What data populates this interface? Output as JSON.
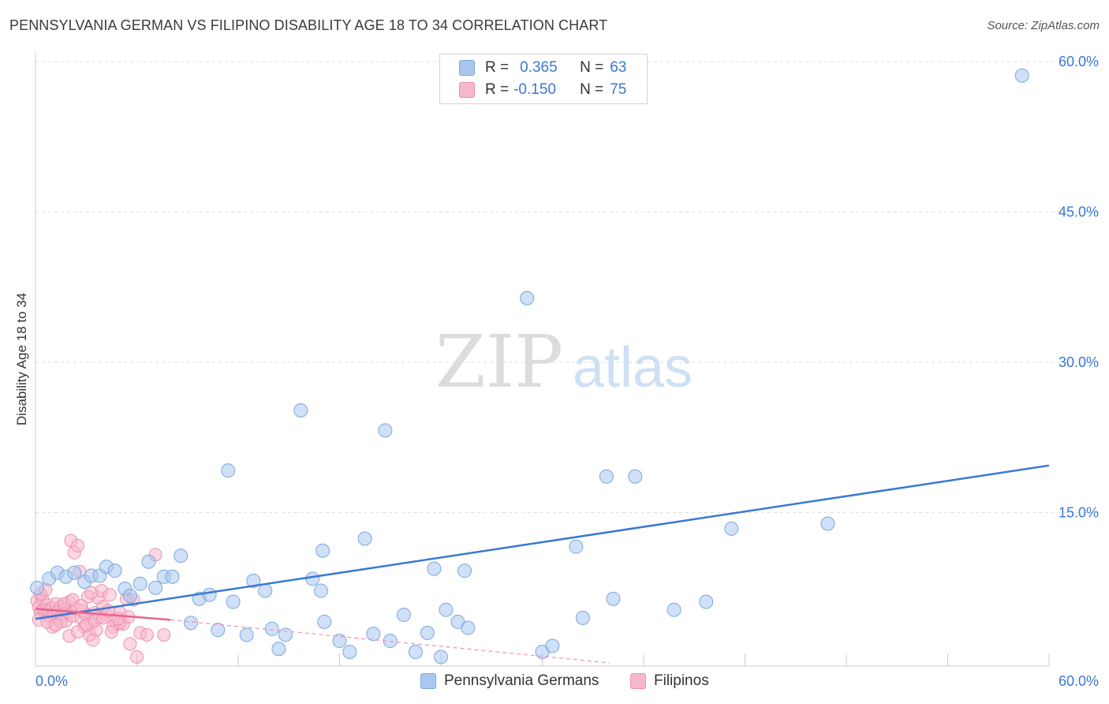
{
  "title": "PENNSYLVANIA GERMAN VS FILIPINO DISABILITY AGE 18 TO 34 CORRELATION CHART",
  "source": "Source: ZipAtlas.com",
  "watermark": {
    "zip": "ZIP",
    "atlas": "atlas"
  },
  "legend": {
    "rows": [
      {
        "r_label": "R =",
        "r_value": "0.365",
        "n_label": "N =",
        "n_value": "63"
      },
      {
        "r_label": "R =",
        "r_value": "-0.150",
        "n_label": "N =",
        "n_value": "75"
      }
    ]
  },
  "colors": {
    "blue": "#3a78d4",
    "blue_fill": "#a9c7ee",
    "blue_stroke": "#7aa7e0",
    "pink": "#e8638e",
    "pink_fill": "#f6b7cb",
    "pink_stroke": "#ef8fb0",
    "grid": "#dddddd",
    "tick_text": "#3a78d4"
  },
  "chart_data": {
    "type": "scatter",
    "title": "PENNSYLVANIA GERMAN VS FILIPINO DISABILITY AGE 18 TO 34 CORRELATION CHART",
    "xlabel": "",
    "ylabel": "Disability Age 18 to 34",
    "xlim": [
      0,
      60
    ],
    "ylim": [
      0,
      60
    ],
    "x_tick_labels": [
      "0.0%",
      "60.0%"
    ],
    "y_ticks": [
      15,
      30,
      45,
      60
    ],
    "y_tick_labels": [
      "15.0%",
      "30.0%",
      "45.0%",
      "60.0%"
    ],
    "legend_position": "top-center",
    "series": [
      {
        "name": "Pennsylvania Germans",
        "color": "#3a78d4",
        "R": 0.365,
        "N": 63,
        "trend": {
          "x": [
            0,
            60
          ],
          "y": [
            4.4,
            19.7
          ]
        },
        "points": [
          [
            0.1,
            7.5
          ],
          [
            0.8,
            8.4
          ],
          [
            1.3,
            9.0
          ],
          [
            1.8,
            8.6
          ],
          [
            2.3,
            9.0
          ],
          [
            2.9,
            8.1
          ],
          [
            3.3,
            8.7
          ],
          [
            3.8,
            8.7
          ],
          [
            4.2,
            9.6
          ],
          [
            4.7,
            9.2
          ],
          [
            5.3,
            7.4
          ],
          [
            5.6,
            6.7
          ],
          [
            6.2,
            7.9
          ],
          [
            6.7,
            10.1
          ],
          [
            7.1,
            7.5
          ],
          [
            7.6,
            8.6
          ],
          [
            8.1,
            8.6
          ],
          [
            8.6,
            10.7
          ],
          [
            9.2,
            4.0
          ],
          [
            9.7,
            6.4
          ],
          [
            10.3,
            6.8
          ],
          [
            10.8,
            3.3
          ],
          [
            11.4,
            19.2
          ],
          [
            11.7,
            6.1
          ],
          [
            12.5,
            2.8
          ],
          [
            12.9,
            8.2
          ],
          [
            13.6,
            7.2
          ],
          [
            14.0,
            3.4
          ],
          [
            14.4,
            1.4
          ],
          [
            14.8,
            2.8
          ],
          [
            15.7,
            25.2
          ],
          [
            16.4,
            8.4
          ],
          [
            17.0,
            11.2
          ],
          [
            16.9,
            7.2
          ],
          [
            17.1,
            4.1
          ],
          [
            18.0,
            2.2
          ],
          [
            18.6,
            1.1
          ],
          [
            19.5,
            12.4
          ],
          [
            20.0,
            2.9
          ],
          [
            20.7,
            23.2
          ],
          [
            21.0,
            2.2
          ],
          [
            21.8,
            4.8
          ],
          [
            22.5,
            1.1
          ],
          [
            23.2,
            3.0
          ],
          [
            23.6,
            9.4
          ],
          [
            24.0,
            0.6
          ],
          [
            24.3,
            5.3
          ],
          [
            25.0,
            4.1
          ],
          [
            25.4,
            9.2
          ],
          [
            25.6,
            3.5
          ],
          [
            29.1,
            36.4
          ],
          [
            30.0,
            1.1
          ],
          [
            30.6,
            1.7
          ],
          [
            32.0,
            11.6
          ],
          [
            32.4,
            4.5
          ],
          [
            33.8,
            18.6
          ],
          [
            34.2,
            6.4
          ],
          [
            35.5,
            18.6
          ],
          [
            37.8,
            5.3
          ],
          [
            39.7,
            6.1
          ],
          [
            41.2,
            13.4
          ],
          [
            46.9,
            13.9
          ],
          [
            58.4,
            58.6
          ]
        ]
      },
      {
        "name": "Filipinos",
        "color": "#e8638e",
        "R": -0.15,
        "N": 75,
        "trend": {
          "x": [
            0,
            8
          ],
          "y": [
            5.4,
            4.3
          ]
        },
        "trend_extension": {
          "x": [
            8,
            34
          ],
          "y": [
            4.3,
            0.0
          ]
        },
        "points": [
          [
            0.1,
            6.2
          ],
          [
            0.2,
            5.6
          ],
          [
            0.3,
            5.0
          ],
          [
            0.4,
            6.4
          ],
          [
            0.5,
            5.3
          ],
          [
            0.6,
            4.9
          ],
          [
            0.7,
            5.8
          ],
          [
            0.8,
            5.2
          ],
          [
            0.9,
            4.6
          ],
          [
            1.0,
            5.5
          ],
          [
            1.1,
            4.8
          ],
          [
            1.2,
            5.9
          ],
          [
            1.3,
            5.1
          ],
          [
            1.4,
            4.4
          ],
          [
            1.5,
            5.6
          ],
          [
            1.6,
            4.9
          ],
          [
            1.7,
            5.3
          ],
          [
            1.8,
            4.2
          ],
          [
            1.9,
            5.0
          ],
          [
            2.0,
            6.1
          ],
          [
            2.1,
            12.2
          ],
          [
            2.2,
            4.7
          ],
          [
            2.3,
            11.0
          ],
          [
            2.4,
            5.4
          ],
          [
            2.5,
            11.7
          ],
          [
            2.6,
            9.1
          ],
          [
            2.7,
            4.5
          ],
          [
            2.8,
            5.2
          ],
          [
            2.9,
            3.6
          ],
          [
            3.0,
            4.8
          ],
          [
            3.1,
            6.6
          ],
          [
            3.2,
            2.8
          ],
          [
            3.3,
            4.0
          ],
          [
            3.4,
            2.3
          ],
          [
            3.5,
            5.0
          ],
          [
            3.6,
            3.3
          ],
          [
            3.7,
            6.5
          ],
          [
            3.8,
            4.6
          ],
          [
            3.9,
            7.2
          ],
          [
            4.0,
            5.6
          ],
          [
            4.2,
            4.8
          ],
          [
            4.4,
            6.8
          ],
          [
            4.6,
            3.6
          ],
          [
            4.8,
            3.9
          ],
          [
            5.0,
            5.0
          ],
          [
            5.2,
            3.9
          ],
          [
            5.4,
            6.4
          ],
          [
            5.6,
            1.9
          ],
          [
            5.8,
            6.3
          ],
          [
            6.0,
            0.6
          ],
          [
            6.2,
            3.0
          ],
          [
            6.6,
            2.8
          ],
          [
            7.1,
            10.8
          ],
          [
            7.6,
            2.8
          ],
          [
            0.3,
            6.9
          ],
          [
            0.6,
            7.3
          ],
          [
            1.0,
            3.6
          ],
          [
            1.5,
            4.1
          ],
          [
            2.0,
            2.7
          ],
          [
            2.5,
            3.1
          ],
          [
            3.0,
            3.8
          ],
          [
            3.5,
            4.2
          ],
          [
            4.0,
            4.5
          ],
          [
            4.5,
            3.1
          ],
          [
            5.0,
            4.0
          ],
          [
            0.2,
            4.3
          ],
          [
            0.7,
            4.1
          ],
          [
            1.2,
            3.8
          ],
          [
            1.7,
            5.9
          ],
          [
            2.2,
            6.3
          ],
          [
            2.7,
            5.7
          ],
          [
            3.3,
            7.0
          ],
          [
            4.3,
            5.2
          ],
          [
            4.9,
            4.4
          ],
          [
            5.5,
            4.6
          ]
        ]
      }
    ]
  },
  "bottom_legend": [
    {
      "label": "Pennsylvania Germans"
    },
    {
      "label": "Filipinos"
    }
  ]
}
